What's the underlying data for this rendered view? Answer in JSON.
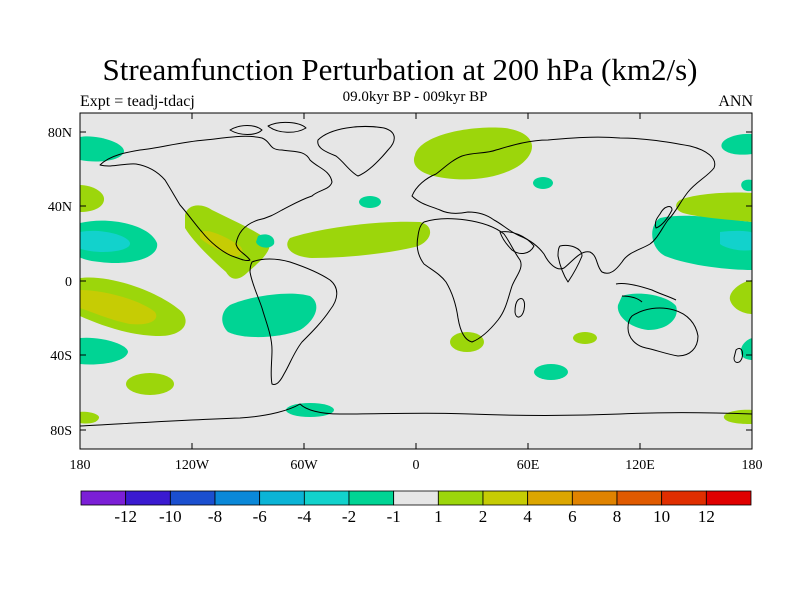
{
  "title": "Streamfunction Perturbation at 200 hPa (km2/s)",
  "subtitle": "09.0kyr BP - 009kyr BP",
  "experiment_label": "Expt = teadj-tdacj",
  "period_label": "ANN",
  "axes": {
    "x_ticks": [
      "180",
      "120W",
      "60W",
      "0",
      "60E",
      "120E",
      "180"
    ],
    "y_ticks": [
      "80N",
      "40N",
      "0",
      "40S",
      "80S"
    ]
  },
  "colorbar": {
    "labels": [
      "-12",
      "-10",
      "-8",
      "-6",
      "-4",
      "-2",
      "-1",
      "1",
      "2",
      "4",
      "6",
      "8",
      "10",
      "12"
    ],
    "colors": [
      "#7b1fd6",
      "#3a1ad0",
      "#1b4fcf",
      "#0a88d8",
      "#0bb4d6",
      "#12d2cc",
      "#00d494",
      "#e6e6e6",
      "#9cd60b",
      "#c6cc04",
      "#dca600",
      "#e08300",
      "#e05a00",
      "#e02e00",
      "#e00000"
    ]
  },
  "colors": {
    "background_field": "#e6e6e6",
    "coastline": "#000000"
  }
}
